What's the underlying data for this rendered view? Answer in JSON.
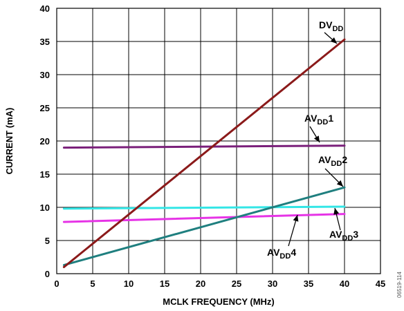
{
  "chart_data": {
    "type": "line",
    "title": "",
    "xlabel": "MCLK FREQUENCY (MHz)",
    "ylabel": "CURRENT (mA)",
    "xlim": [
      0,
      45
    ],
    "ylim": [
      0,
      40
    ],
    "xticks": [
      0,
      5,
      10,
      15,
      20,
      25,
      30,
      35,
      40,
      45
    ],
    "yticks": [
      0,
      5,
      10,
      15,
      20,
      25,
      30,
      35,
      40
    ],
    "grid": true,
    "series": [
      {
        "name": "DVDD",
        "color": "#8b1a1a",
        "x": [
          1,
          40
        ],
        "y": [
          1.0,
          35.3
        ]
      },
      {
        "name": "AVDD1",
        "color": "#7a1f7a",
        "x": [
          1,
          40
        ],
        "y": [
          19.0,
          19.3
        ]
      },
      {
        "name": "AVDD2",
        "color": "#1f7f7f",
        "x": [
          1,
          40
        ],
        "y": [
          1.3,
          13.0
        ]
      },
      {
        "name": "AVDD3",
        "color": "#33e6e6",
        "x": [
          1,
          40
        ],
        "y": [
          9.8,
          10.1
        ]
      },
      {
        "name": "AVDD4",
        "color": "#e633e6",
        "x": [
          1,
          40
        ],
        "y": [
          7.8,
          9.0
        ]
      }
    ],
    "annotations": [
      {
        "main": "DV",
        "sub": "DD",
        "suffix": ""
      },
      {
        "main": "AV",
        "sub": "DD",
        "suffix": "1"
      },
      {
        "main": "AV",
        "sub": "DD",
        "suffix": "2"
      },
      {
        "main": "AV",
        "sub": "DD",
        "suffix": "3"
      },
      {
        "main": "AV",
        "sub": "DD",
        "suffix": "4"
      }
    ],
    "watermark": "06519-114"
  }
}
